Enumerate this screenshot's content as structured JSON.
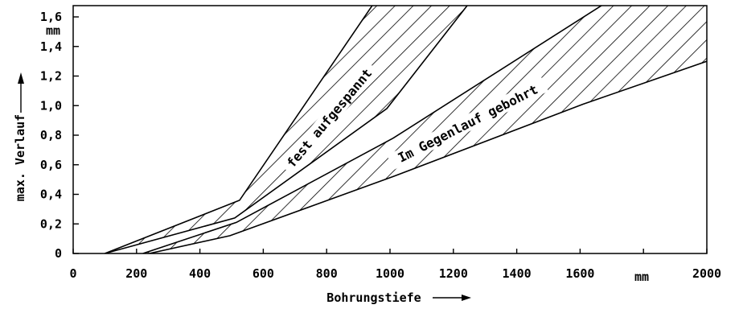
{
  "chart_data": {
    "type": "area",
    "xlabel": "Bohrungstiefe",
    "ylabel": "max. Verlauf",
    "x_unit": "mm",
    "y_unit": "mm",
    "xlim": [
      0,
      2000
    ],
    "ylim": [
      0,
      1.6
    ],
    "x_ticks": [
      "0",
      "200",
      "400",
      "600",
      "800",
      "1000",
      "1200",
      "1400",
      "1600",
      "2000"
    ],
    "y_ticks": [
      "0",
      "0,2",
      "0,4",
      "0,6",
      "0,8",
      "1,0",
      "1,2",
      "1,4",
      "1,6"
    ],
    "grid": false,
    "series": [
      {
        "name": "fest aufgespannt",
        "lower": [
          [
            100,
            0
          ],
          [
            510,
            0.24
          ],
          [
            990,
            0.98
          ],
          [
            1245,
            1.68
          ]
        ],
        "upper": [
          [
            100,
            0
          ],
          [
            525,
            0.36
          ],
          [
            945,
            1.68
          ]
        ]
      },
      {
        "name": "Im Gegenlauf gebohrt",
        "lower": [
          [
            240,
            0
          ],
          [
            495,
            0.12
          ],
          [
            1010,
            0.52
          ],
          [
            1610,
            1.01
          ],
          [
            2000,
            1.3
          ]
        ],
        "upper": [
          [
            220,
            0
          ],
          [
            515,
            0.21
          ],
          [
            1010,
            0.78
          ],
          [
            1670,
            1.68
          ],
          [
            2000,
            1.68
          ]
        ]
      }
    ]
  }
}
